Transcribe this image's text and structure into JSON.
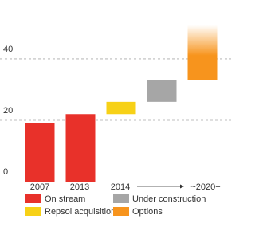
{
  "chart_data": {
    "type": "waterfall",
    "categories": [
      "2007",
      "2013",
      "2014",
      null,
      "~2020+"
    ],
    "series": [
      {
        "name": "On stream",
        "color": "#e8312a",
        "values": [
          19,
          22,
          null,
          null,
          null
        ]
      },
      {
        "name": "Under construction",
        "color": "#a6a6a6",
        "values": [
          null,
          null,
          null,
          7,
          null
        ]
      },
      {
        "name": "Repsol acquisition",
        "color": "#f7d117",
        "values": [
          null,
          null,
          4,
          null,
          null
        ]
      },
      {
        "name": "Options",
        "color": "#f7941d",
        "values": [
          null,
          null,
          null,
          null,
          18
        ],
        "fade": true
      }
    ],
    "ylim": [
      0,
      54
    ],
    "yticks": [
      0,
      20,
      40
    ],
    "grid": true
  }
}
